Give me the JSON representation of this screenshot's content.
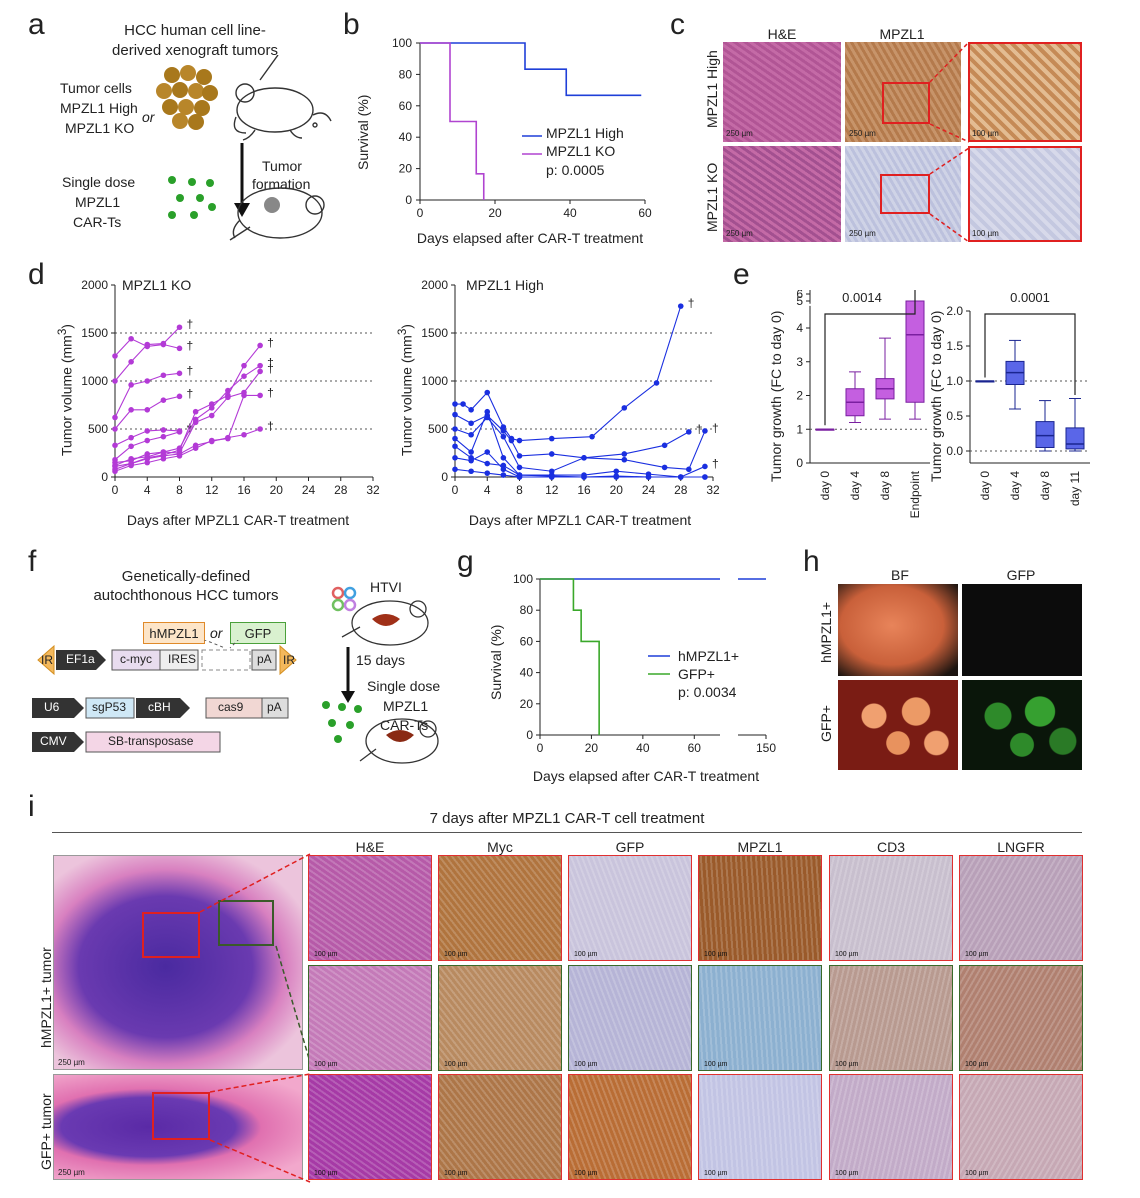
{
  "panels": {
    "a": "a",
    "b": "b",
    "c": "c",
    "d": "d",
    "e": "e",
    "f": "f",
    "g": "g",
    "h": "h",
    "i": "i"
  },
  "a": {
    "title1": "HCC human cell line-",
    "title2": "derived xenograft tumors",
    "tumor_cells": "Tumor cells",
    "mpzl1_high": "MPZL1 High",
    "or": "or",
    "mpzl1_ko": "MPZL1 KO",
    "tumor": "Tumor",
    "formation": "formation",
    "single_dose": "Single dose",
    "mpzl1": "MPZL1",
    "car_ts": "CAR-Ts"
  },
  "b": {
    "ylabel": "Survival (%)",
    "xlabel": "Days elapsed after CAR-T treatment",
    "legend_high": "MPZL1 High",
    "legend_ko": "MPZL1 KO",
    "pval": "p: 0.0005",
    "yticks": [
      "0",
      "20",
      "40",
      "60",
      "80",
      "100"
    ],
    "xticks": [
      "0",
      "20",
      "40",
      "60"
    ]
  },
  "c": {
    "col_he": "H&E",
    "col_mpzl1": "MPZL1",
    "row_high": "MPZL1 High",
    "row_ko": "MPZL1 KO",
    "scale_250": "250 µm",
    "scale_100": "100 µm"
  },
  "d": {
    "ko_title": "MPZL1 KO",
    "high_title": "MPZL1 High",
    "ylabel": "Tumor volume (mm",
    "ylabel_sup": "3",
    "ylabel_end": ")",
    "xlabel": "Days after MPZL1 CAR-T treatment",
    "yticks": [
      "0",
      "500",
      "1000",
      "1500",
      "2000"
    ],
    "xticks": [
      "0",
      "4",
      "8",
      "12",
      "16",
      "20",
      "24",
      "28",
      "32"
    ],
    "dagger": "†"
  },
  "e": {
    "ylabel": "Tumor growth (FC to day 0)",
    "left_p": "0.0014",
    "right_p": "0.0001",
    "left_cats": [
      "day 0",
      "day 4",
      "day 8",
      "Endpoint"
    ],
    "right_cats": [
      "day 0",
      "day 4",
      "day 8",
      "day 11"
    ],
    "left_yticks": [
      "0",
      "1",
      "2",
      "3",
      "4",
      "5",
      "6",
      "12",
      "18"
    ],
    "right_yticks": [
      "0.0",
      "0.5",
      "1.0",
      "1.5",
      "2.0"
    ]
  },
  "f": {
    "title1": "Genetically-defined",
    "title2": "autochthonous HCC tumors",
    "hmpzl1": "hMPZL1",
    "or": "or",
    "gfp": "GFP",
    "ir": "IR",
    "ef1a": "EF1a",
    "cmyc": "c-myc",
    "ires": "IRES",
    "pa": "pA",
    "u6": "U6",
    "sgp53": "sgP53",
    "cbh": "cBH",
    "cas9": "cas9",
    "cmv": "CMV",
    "sb": "SB-transposase",
    "htvi": "HTVI",
    "days15": "15 days",
    "single_dose": "Single dose",
    "mpzl1": "MPZL1",
    "car_ts": "CAR-Ts"
  },
  "g": {
    "ylabel": "Survival (%)",
    "xlabel": "Days elapsed after CAR-T treatment",
    "legend_h": "hMPZL1+",
    "legend_g": "GFP+",
    "pval": "p: 0.0034",
    "yticks": [
      "0",
      "20",
      "40",
      "60",
      "80",
      "100"
    ],
    "xticks": [
      "0",
      "20",
      "40",
      "60",
      "150"
    ]
  },
  "h": {
    "col_bf": "BF",
    "col_gfp": "GFP",
    "row_h": "hMPZL1+",
    "row_g": "GFP+"
  },
  "i": {
    "title": "7 days after MPZL1 CAR-T cell treatment",
    "cols": [
      "H&E",
      "Myc",
      "GFP",
      "MPZL1",
      "CD3",
      "LNGFR"
    ],
    "row_h": "hMPZL1+ tumor",
    "row_g": "GFP+ tumor",
    "scale_250": "250 µm",
    "scale_100": "100 µm"
  },
  "chart_data": [
    {
      "type": "line",
      "id": "b",
      "title": "",
      "xlabel": "Days elapsed after CAR-T treatment",
      "ylabel": "Survival (%)",
      "xlim": [
        0,
        60
      ],
      "ylim": [
        0,
        100
      ],
      "series": [
        {
          "name": "MPZL1 High",
          "color": "#1f3fd8",
          "steps": [
            [
              0,
              100
            ],
            [
              28,
              100
            ],
            [
              28,
              83.3
            ],
            [
              39,
              83.3
            ],
            [
              39,
              66.7
            ],
            [
              59,
              66.7
            ]
          ]
        },
        {
          "name": "MPZL1 KO",
          "color": "#b044d0",
          "steps": [
            [
              0,
              100
            ],
            [
              8,
              100
            ],
            [
              8,
              50
            ],
            [
              15,
              50
            ],
            [
              15,
              16.7
            ],
            [
              17,
              16.7
            ],
            [
              17,
              0
            ]
          ]
        }
      ],
      "annotation": "p: 0.0005"
    },
    {
      "type": "line",
      "id": "d_ko",
      "title": "MPZL1 KO",
      "xlabel": "Days after MPZL1 CAR-T treatment",
      "xlim": [
        0,
        32
      ],
      "ylim": [
        0,
        2000
      ],
      "color": "#b33ad6",
      "series": [
        {
          "x": [
            0,
            2,
            4,
            6,
            8
          ],
          "y": [
            1000,
            1200,
            1380,
            1390,
            1560
          ]
        },
        {
          "x": [
            0,
            2,
            4,
            6,
            8
          ],
          "y": [
            1260,
            1440,
            1360,
            1380,
            1340
          ]
        },
        {
          "x": [
            0,
            2,
            4,
            6,
            8
          ],
          "y": [
            620,
            960,
            1000,
            1060,
            1080
          ]
        },
        {
          "x": [
            0,
            2,
            4,
            6,
            8
          ],
          "y": [
            500,
            700,
            700,
            800,
            840
          ]
        },
        {
          "x": [
            0,
            2,
            4,
            6,
            8
          ],
          "y": [
            330,
            410,
            480,
            490,
            480
          ]
        },
        {
          "x": [
            0,
            2,
            4,
            6,
            8
          ],
          "y": [
            180,
            320,
            380,
            420,
            470
          ]
        },
        {
          "x": [
            0,
            2,
            4,
            6,
            8,
            10,
            12,
            14,
            16,
            18
          ],
          "y": [
            80,
            140,
            200,
            230,
            280,
            680,
            760,
            850,
            1160,
            1370
          ]
        },
        {
          "x": [
            0,
            2,
            4,
            6,
            8,
            10,
            12,
            14,
            16,
            18
          ],
          "y": [
            120,
            190,
            210,
            260,
            300,
            600,
            720,
            900,
            1050,
            1160
          ]
        },
        {
          "x": [
            0,
            2,
            4,
            6,
            8,
            10,
            12,
            14,
            16,
            18
          ],
          "y": [
            150,
            170,
            240,
            260,
            250,
            570,
            640,
            830,
            880,
            1100
          ]
        },
        {
          "x": [
            0,
            2,
            4,
            6,
            8,
            10,
            12,
            14,
            16,
            18
          ],
          "y": [
            60,
            120,
            150,
            190,
            220,
            300,
            380,
            400,
            850,
            850
          ]
        },
        {
          "x": [
            0,
            2,
            4,
            6,
            8,
            10,
            12,
            14,
            16,
            18
          ],
          "y": [
            110,
            140,
            190,
            220,
            240,
            330,
            370,
            410,
            440,
            500
          ]
        }
      ]
    },
    {
      "type": "line",
      "id": "d_high",
      "title": "MPZL1 High",
      "xlabel": "Days after MPZL1 CAR-T treatment",
      "xlim": [
        0,
        32
      ],
      "ylim": [
        0,
        2000
      ],
      "color": "#1a2fe0",
      "series": [
        {
          "x": [
            0,
            1,
            2,
            4,
            6,
            7,
            8,
            12,
            17,
            21,
            25,
            28
          ],
          "y": [
            760,
            760,
            700,
            880,
            520,
            400,
            380,
            400,
            420,
            720,
            980,
            1780
          ]
        },
        {
          "x": [
            0,
            2,
            4,
            6,
            7,
            8,
            12,
            16,
            21,
            26,
            29
          ],
          "y": [
            650,
            560,
            640,
            480,
            380,
            220,
            240,
            200,
            240,
            330,
            470
          ]
        },
        {
          "x": [
            0,
            2,
            4,
            6,
            8,
            12,
            16,
            21,
            26,
            29,
            31
          ],
          "y": [
            500,
            440,
            620,
            420,
            100,
            60,
            200,
            180,
            100,
            80,
            480
          ]
        },
        {
          "x": [
            0,
            2,
            4,
            6,
            8,
            12,
            16,
            20,
            24,
            28,
            31
          ],
          "y": [
            400,
            260,
            680,
            200,
            20,
            20,
            20,
            60,
            30,
            0,
            0
          ]
        },
        {
          "x": [
            0,
            2,
            4,
            6,
            8,
            12,
            16,
            20,
            24,
            28,
            31
          ],
          "y": [
            320,
            200,
            140,
            120,
            20,
            10,
            0,
            10,
            0,
            0,
            110
          ]
        },
        {
          "x": [
            0,
            2,
            4,
            6,
            8,
            12,
            16,
            20,
            24,
            28,
            31
          ],
          "y": [
            200,
            170,
            260,
            80,
            0,
            0,
            0,
            0,
            0,
            0,
            0
          ]
        },
        {
          "x": [
            0,
            2,
            4,
            6,
            8,
            12
          ],
          "y": [
            80,
            60,
            40,
            20,
            0,
            0
          ]
        }
      ]
    },
    {
      "type": "box",
      "id": "e_left",
      "ylabel": "Tumor growth (FC to day 0)",
      "categories": [
        "day 0",
        "day 4",
        "day 8",
        "Endpoint"
      ],
      "color": "#c45fe0",
      "boxes": [
        {
          "min": 1,
          "q1": 1,
          "median": 1,
          "q3": 1,
          "max": 1
        },
        {
          "min": 1.2,
          "q1": 1.4,
          "median": 1.8,
          "q3": 2.2,
          "max": 2.7
        },
        {
          "min": 1.3,
          "q1": 1.9,
          "median": 2.2,
          "q3": 2.5,
          "max": 3.7
        },
        {
          "min": 1.3,
          "q1": 1.8,
          "median": 3.8,
          "q3": 5.0,
          "max": 15
        }
      ],
      "significance": {
        "from": "day 0",
        "to": "Endpoint",
        "p": "0.0014"
      }
    },
    {
      "type": "box",
      "id": "e_right",
      "ylabel": "Tumor growth (FC to day 0)",
      "categories": [
        "day 0",
        "day 4",
        "day 8",
        "day 11"
      ],
      "color": "#5a66e8",
      "ylim": [
        0,
        2.0
      ],
      "boxes": [
        {
          "min": 1,
          "q1": 1,
          "median": 1,
          "q3": 1,
          "max": 1
        },
        {
          "min": 0.6,
          "q1": 0.95,
          "median": 1.12,
          "q3": 1.28,
          "max": 1.58
        },
        {
          "min": 0.0,
          "q1": 0.05,
          "median": 0.22,
          "q3": 0.42,
          "max": 0.72
        },
        {
          "min": 0.0,
          "q1": 0.03,
          "median": 0.1,
          "q3": 0.33,
          "max": 0.75
        }
      ],
      "significance": {
        "from": "day 0",
        "to": "day 11",
        "p": "0.0001"
      }
    },
    {
      "type": "line",
      "id": "g",
      "xlabel": "Days elapsed after CAR-T treatment",
      "ylabel": "Survival (%)",
      "ylim": [
        0,
        100
      ],
      "series": [
        {
          "name": "hMPZL1+",
          "color": "#1f3fd8",
          "steps": [
            [
              0,
              100
            ],
            [
              70,
              100
            ],
            [
              150,
              100
            ]
          ]
        },
        {
          "name": "GFP+",
          "color": "#3aa82a",
          "steps": [
            [
              0,
              100
            ],
            [
              13,
              100
            ],
            [
              13,
              80
            ],
            [
              16,
              80
            ],
            [
              16,
              60
            ],
            [
              23,
              60
            ],
            [
              23,
              0
            ]
          ]
        }
      ],
      "annotation": "p: 0.0034"
    }
  ]
}
